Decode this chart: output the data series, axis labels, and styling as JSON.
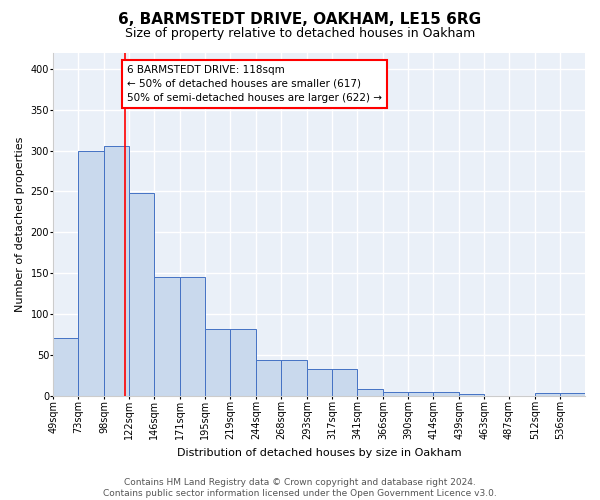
{
  "title": "6, BARMSTEDT DRIVE, OAKHAM, LE15 6RG",
  "subtitle": "Size of property relative to detached houses in Oakham",
  "xlabel": "Distribution of detached houses by size in Oakham",
  "ylabel": "Number of detached properties",
  "bar_edges": [
    49,
    73,
    98,
    122,
    146,
    171,
    195,
    219,
    244,
    268,
    293,
    317,
    341,
    366,
    390,
    414,
    439,
    463,
    487,
    512,
    536,
    560
  ],
  "bar_heights": [
    70,
    300,
    305,
    248,
    145,
    145,
    82,
    82,
    44,
    44,
    32,
    32,
    8,
    5,
    5,
    5,
    2,
    0,
    0,
    3,
    3
  ],
  "bar_color": "#c9d9ed",
  "bar_edge_color": "#4472c4",
  "property_line_x": 118,
  "property_line_color": "red",
  "annotation_text": "6 BARMSTEDT DRIVE: 118sqm\n← 50% of detached houses are smaller (617)\n50% of semi-detached houses are larger (622) →",
  "annotation_box_color": "white",
  "annotation_box_edge_color": "red",
  "ylim": [
    0,
    420
  ],
  "yticks": [
    0,
    50,
    100,
    150,
    200,
    250,
    300,
    350,
    400
  ],
  "tick_labels": [
    "49sqm",
    "73sqm",
    "98sqm",
    "122sqm",
    "146sqm",
    "171sqm",
    "195sqm",
    "219sqm",
    "244sqm",
    "268sqm",
    "293sqm",
    "317sqm",
    "341sqm",
    "366sqm",
    "390sqm",
    "414sqm",
    "439sqm",
    "463sqm",
    "487sqm",
    "512sqm",
    "536sqm"
  ],
  "footer_text": "Contains HM Land Registry data © Crown copyright and database right 2024.\nContains public sector information licensed under the Open Government Licence v3.0.",
  "background_color": "#eaf0f8",
  "grid_color": "white",
  "title_fontsize": 11,
  "subtitle_fontsize": 9,
  "label_fontsize": 8,
  "tick_fontsize": 7,
  "footer_fontsize": 6.5,
  "annotation_fontsize": 7.5
}
